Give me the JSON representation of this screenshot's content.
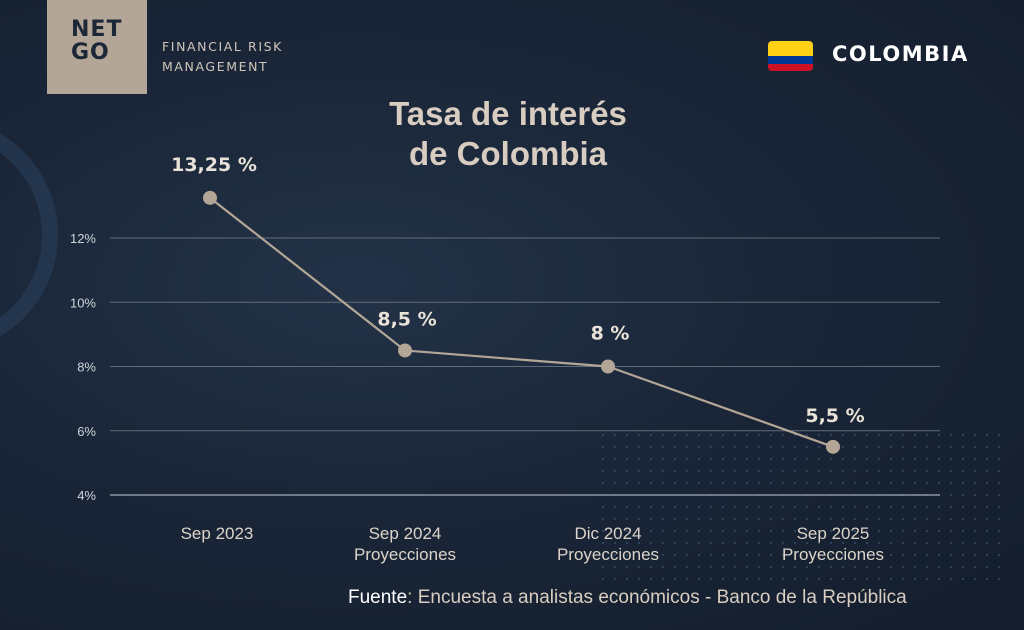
{
  "brand": {
    "logo_line1": "NET",
    "logo_line2": "GO",
    "tagline_line1": "FINANCIAL RISK",
    "tagline_line2": "MANAGEMENT"
  },
  "country": {
    "name": "COLOMBIA",
    "flag_colors": [
      "#fcd116",
      "#003893",
      "#ce1126"
    ]
  },
  "source": {
    "lead": "Fuente",
    "text": ": Encuesta a analistas económicos - Banco de la República"
  },
  "colors": {
    "line": "#b3a697",
    "grid": "#5f6b79",
    "tick": "#cfd5dc",
    "label": "#e9e2d8",
    "category": "#dcd4c9"
  },
  "chart_data": {
    "type": "line",
    "title": "Tasa de interés de Colombia",
    "title_lines": [
      "Tasa de interés",
      "de Colombia"
    ],
    "categories": [
      [
        "Sep 2023"
      ],
      [
        "Sep 2024",
        "Proyecciones"
      ],
      [
        "Dic 2024",
        "Proyecciones"
      ],
      [
        "Sep 2025",
        "Proyecciones"
      ]
    ],
    "values": [
      13.25,
      8.5,
      8,
      5.5
    ],
    "data_labels": [
      "13,25 %",
      "8,5 %",
      "8 %",
      "5,5 %"
    ],
    "yticks": [
      4,
      6,
      8,
      10,
      12
    ],
    "ytick_labels": [
      "4%",
      "6%",
      "8%",
      "10%",
      "12%"
    ],
    "ylim": [
      4,
      12
    ],
    "grid": true,
    "legend": "none"
  }
}
